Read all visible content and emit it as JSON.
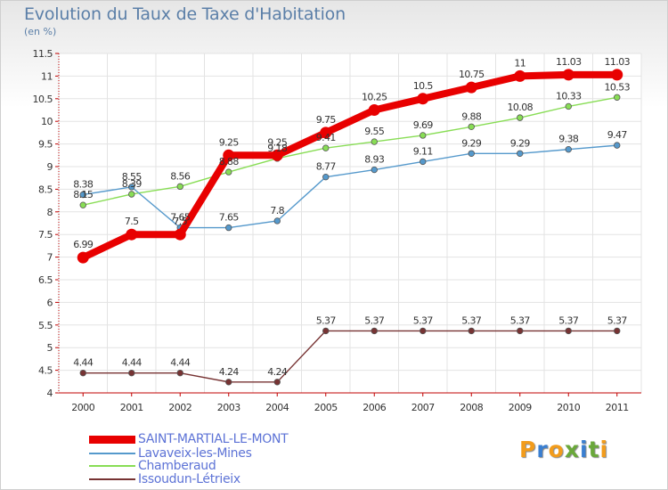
{
  "chart_data": {
    "type": "line",
    "title": "Evolution du Taux de Taxe d'Habitation",
    "subtitle": "(en %)",
    "x": [
      "2000",
      "2001",
      "2002",
      "2003",
      "2004",
      "2005",
      "2006",
      "2007",
      "2008",
      "2009",
      "2010",
      "2011"
    ],
    "ylim": [
      4,
      11.5
    ],
    "yticks": [
      "4",
      "4.5",
      "5",
      "5.5",
      "6",
      "6.5",
      "7",
      "7.5",
      "8",
      "8.5",
      "9",
      "9.5",
      "10",
      "10.5",
      "11",
      "11.5"
    ],
    "grid": true,
    "legend_position": "bottom-left",
    "series": [
      {
        "name": "SAINT-MARTIAL-LE-MONT",
        "color": "#e80000",
        "values": [
          6.99,
          7.5,
          7.5,
          9.25,
          9.25,
          9.75,
          10.25,
          10.5,
          10.75,
          11,
          11.03,
          11.03
        ],
        "labels": [
          "6.99",
          "7.5",
          "7.5",
          "9.25",
          "9.25",
          "9.75",
          "10.25",
          "10.5",
          "10.75",
          "11",
          "11.03",
          "11.03"
        ]
      },
      {
        "name": "Lavaveix-les-Mines",
        "color": "#5599cc",
        "values": [
          8.38,
          8.55,
          7.65,
          7.65,
          7.8,
          8.77,
          8.93,
          9.11,
          9.29,
          9.29,
          9.38,
          9.47
        ],
        "labels": [
          "8.38",
          "8.55",
          "7.65",
          "7.65",
          "7.8",
          "8.77",
          "8.93",
          "9.11",
          "9.29",
          "9.29",
          "9.38",
          "9.47"
        ]
      },
      {
        "name": "Chamberaud",
        "color": "#88dd55",
        "values": [
          8.15,
          8.39,
          8.56,
          8.88,
          9.18,
          9.41,
          9.55,
          9.69,
          9.88,
          10.08,
          10.33,
          10.53
        ],
        "labels": [
          "8.15",
          "8.39",
          "8.56",
          "8.88",
          "9.18",
          "9.41",
          "9.55",
          "9.69",
          "9.88",
          "10.08",
          "10.33",
          "10.53"
        ]
      },
      {
        "name": "Issoudun-Létrieix",
        "color": "#773333",
        "values": [
          4.44,
          4.44,
          4.44,
          4.24,
          4.24,
          5.37,
          5.37,
          5.37,
          5.37,
          5.37,
          5.37,
          5.37
        ],
        "labels": [
          "4.44",
          "4.44",
          "4.44",
          "4.24",
          "4.24",
          "5.37",
          "5.37",
          "5.37",
          "5.37",
          "5.37",
          "5.37",
          "5.37"
        ]
      }
    ]
  },
  "logo_text": "Proxiti",
  "logo_colors": [
    "#f29c1c",
    "#3a7fd1",
    "#f29c1c",
    "#6aa83a",
    "#3a7fd1",
    "#6aa83a",
    "#f29c1c"
  ]
}
